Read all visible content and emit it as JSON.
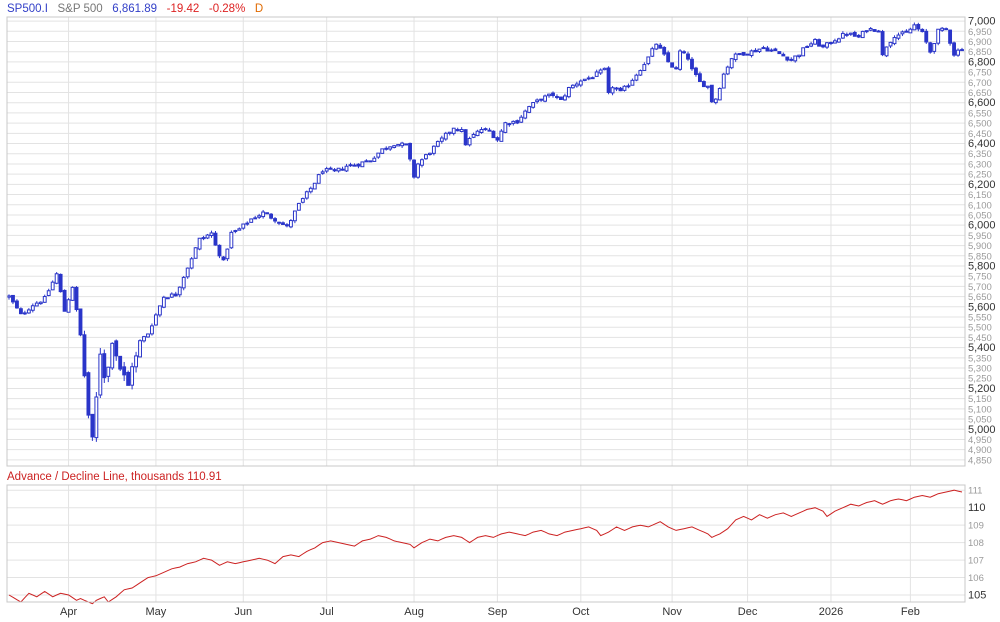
{
  "header": {
    "symbol": "SP500.I",
    "name": "S&P 500",
    "last": "6,861.89",
    "change": "-19.42",
    "change_pct": "-0.28%",
    "period": "D"
  },
  "indicator": {
    "label": "Advance / Decline Line, thousands",
    "value": "110.91"
  },
  "colors": {
    "candle": "#2a35c9",
    "ad_line": "#cc2222",
    "grid": "#e3e3e3",
    "axis_text": "#9a9a9a",
    "header_blue": "#3340c8",
    "header_gray": "#777777",
    "header_red": "#dd2222",
    "header_orange": "#e06a00"
  },
  "chart_data": [
    {
      "type": "candlestick",
      "title": "",
      "y_axis_side": "right",
      "ylim": [
        4820,
        7020
      ],
      "y_ticks": [
        4850,
        4900,
        4950,
        5000,
        5050,
        5100,
        5150,
        5200,
        5250,
        5300,
        5350,
        5400,
        5450,
        5500,
        5550,
        5600,
        5650,
        5700,
        5750,
        5800,
        5850,
        5900,
        5950,
        6000,
        6050,
        6100,
        6150,
        6200,
        6250,
        6300,
        6350,
        6400,
        6450,
        6500,
        6550,
        6600,
        6650,
        6700,
        6750,
        6800,
        6850,
        6900,
        6950,
        7000
      ],
      "y_tick_labels": [
        "4,850",
        "4,900",
        "4,950",
        "5,000",
        "5,050",
        "5,100",
        "5,150",
        "5,200",
        "5,250",
        "5,300",
        "5,350",
        "5,400",
        "5,450",
        "5,500",
        "5,550",
        "5,600",
        "5,650",
        "5,700",
        "5,750",
        "5,800",
        "5,850",
        "5,900",
        "5,950",
        "6,000",
        "6,050",
        "6,100",
        "6,150",
        "6,200",
        "6,250",
        "6,300",
        "6,350",
        "6,400",
        "6,450",
        "6,500",
        "6,550",
        "6,600",
        "6,650",
        "6,700",
        "6,750",
        "6,800",
        "6,850",
        "6,900",
        "6,950",
        "7,000"
      ],
      "y_major_ticks": [
        5000,
        5200,
        5400,
        5600,
        5800,
        6000,
        6200,
        6400,
        6600,
        6800,
        7000
      ],
      "x_labels": [
        {
          "label": "Apr",
          "day": 15
        },
        {
          "label": "May",
          "day": 37
        },
        {
          "label": "Jun",
          "day": 59
        },
        {
          "label": "Jul",
          "day": 80
        },
        {
          "label": "Aug",
          "day": 102
        },
        {
          "label": "Sep",
          "day": 123
        },
        {
          "label": "Oct",
          "day": 144
        },
        {
          "label": "Nov",
          "day": 167
        },
        {
          "label": "Dec",
          "day": 186
        },
        {
          "label": "2026",
          "day": 207
        },
        {
          "label": "Feb",
          "day": 227
        }
      ],
      "total_days": 240,
      "anchors": [
        [
          0,
          5650
        ],
        [
          3,
          5560
        ],
        [
          6,
          5610
        ],
        [
          9,
          5640
        ],
        [
          12,
          5760
        ],
        [
          14,
          5580
        ],
        [
          16,
          5700
        ],
        [
          18,
          5460
        ],
        [
          20,
          5070
        ],
        [
          21,
          4940
        ],
        [
          22,
          5150
        ],
        [
          23,
          5380
        ],
        [
          24,
          5270
        ],
        [
          25,
          5300
        ],
        [
          26,
          5430
        ],
        [
          27,
          5370
        ],
        [
          28,
          5300
        ],
        [
          30,
          5210
        ],
        [
          31,
          5320
        ],
        [
          32,
          5350
        ],
        [
          33,
          5430
        ],
        [
          35,
          5470
        ],
        [
          37,
          5560
        ],
        [
          39,
          5650
        ],
        [
          42,
          5660
        ],
        [
          44,
          5750
        ],
        [
          46,
          5840
        ],
        [
          48,
          5930
        ],
        [
          51,
          5960
        ],
        [
          52,
          5900
        ],
        [
          54,
          5820
        ],
        [
          56,
          5960
        ],
        [
          58,
          5980
        ],
        [
          61,
          6030
        ],
        [
          64,
          6060
        ],
        [
          67,
          6030
        ],
        [
          70,
          5990
        ],
        [
          73,
          6100
        ],
        [
          76,
          6180
        ],
        [
          79,
          6270
        ],
        [
          82,
          6260
        ],
        [
          85,
          6290
        ],
        [
          88,
          6300
        ],
        [
          91,
          6320
        ],
        [
          94,
          6370
        ],
        [
          97,
          6400
        ],
        [
          100,
          6390
        ],
        [
          102,
          6240
        ],
        [
          103,
          6300
        ],
        [
          106,
          6360
        ],
        [
          109,
          6420
        ],
        [
          112,
          6480
        ],
        [
          114,
          6460
        ],
        [
          115,
          6400
        ],
        [
          117,
          6440
        ],
        [
          119,
          6470
        ],
        [
          121,
          6460
        ],
        [
          123,
          6420
        ],
        [
          125,
          6500
        ],
        [
          128,
          6510
        ],
        [
          131,
          6580
        ],
        [
          134,
          6620
        ],
        [
          137,
          6640
        ],
        [
          139,
          6610
        ],
        [
          141,
          6670
        ],
        [
          144,
          6710
        ],
        [
          146,
          6720
        ],
        [
          148,
          6740
        ],
        [
          150,
          6760
        ],
        [
          151,
          6640
        ],
        [
          152,
          6680
        ],
        [
          154,
          6650
        ],
        [
          156,
          6690
        ],
        [
          158,
          6740
        ],
        [
          161,
          6820
        ],
        [
          163,
          6890
        ],
        [
          164,
          6860
        ],
        [
          165,
          6830
        ],
        [
          166,
          6800
        ],
        [
          168,
          6760
        ],
        [
          169,
          6850
        ],
        [
          171,
          6820
        ],
        [
          172,
          6760
        ],
        [
          174,
          6700
        ],
        [
          176,
          6680
        ],
        [
          177,
          6610
        ],
        [
          178,
          6620
        ],
        [
          180,
          6740
        ],
        [
          182,
          6820
        ],
        [
          184,
          6840
        ],
        [
          187,
          6850
        ],
        [
          190,
          6870
        ],
        [
          193,
          6850
        ],
        [
          195,
          6830
        ],
        [
          197,
          6810
        ],
        [
          199,
          6840
        ],
        [
          201,
          6880
        ],
        [
          203,
          6900
        ],
        [
          205,
          6870
        ],
        [
          208,
          6910
        ],
        [
          211,
          6940
        ],
        [
          214,
          6920
        ],
        [
          216,
          6960
        ],
        [
          219,
          6960
        ],
        [
          220,
          6830
        ],
        [
          221,
          6880
        ],
        [
          223,
          6930
        ],
        [
          226,
          6940
        ],
        [
          228,
          6980
        ],
        [
          230,
          6940
        ],
        [
          232,
          6850
        ],
        [
          234,
          6950
        ],
        [
          236,
          6960
        ],
        [
          238,
          6840
        ],
        [
          240,
          6870
        ]
      ]
    },
    {
      "type": "line",
      "title": "",
      "series_name": "",
      "ylim": [
        104.6,
        111.3
      ],
      "y_ticks": [
        105,
        106,
        107,
        108,
        109,
        110,
        111
      ],
      "y_tick_labels": [
        "105",
        "106",
        "107",
        "108",
        "109",
        "110",
        "111"
      ],
      "y_major_ticks": [
        105,
        110
      ],
      "last_value": 110.91,
      "anchors": [
        [
          0,
          105.0
        ],
        [
          3,
          104.6
        ],
        [
          5,
          105.1
        ],
        [
          7,
          104.9
        ],
        [
          9,
          105.2
        ],
        [
          11,
          104.9
        ],
        [
          13,
          105.1
        ],
        [
          15,
          105.0
        ],
        [
          17,
          104.7
        ],
        [
          18,
          104.8
        ],
        [
          20,
          104.6
        ],
        [
          21,
          104.5
        ],
        [
          22,
          104.7
        ],
        [
          24,
          104.9
        ],
        [
          25,
          104.6
        ],
        [
          27,
          104.9
        ],
        [
          29,
          105.3
        ],
        [
          31,
          105.4
        ],
        [
          33,
          105.7
        ],
        [
          35,
          106.0
        ],
        [
          37,
          106.1
        ],
        [
          39,
          106.3
        ],
        [
          41,
          106.5
        ],
        [
          43,
          106.6
        ],
        [
          45,
          106.8
        ],
        [
          47,
          106.9
        ],
        [
          49,
          107.1
        ],
        [
          51,
          107.0
        ],
        [
          53,
          106.7
        ],
        [
          55,
          106.9
        ],
        [
          57,
          106.8
        ],
        [
          59,
          106.9
        ],
        [
          61,
          107.0
        ],
        [
          63,
          107.1
        ],
        [
          65,
          107.0
        ],
        [
          67,
          106.8
        ],
        [
          69,
          107.2
        ],
        [
          71,
          107.3
        ],
        [
          73,
          107.2
        ],
        [
          75,
          107.5
        ],
        [
          77,
          107.7
        ],
        [
          79,
          108.0
        ],
        [
          81,
          108.1
        ],
        [
          83,
          108.0
        ],
        [
          85,
          107.9
        ],
        [
          87,
          107.8
        ],
        [
          89,
          108.1
        ],
        [
          91,
          108.2
        ],
        [
          93,
          108.4
        ],
        [
          95,
          108.3
        ],
        [
          97,
          108.1
        ],
        [
          99,
          108.0
        ],
        [
          101,
          107.9
        ],
        [
          102,
          107.7
        ],
        [
          104,
          108.0
        ],
        [
          106,
          108.2
        ],
        [
          108,
          108.1
        ],
        [
          110,
          108.3
        ],
        [
          112,
          108.4
        ],
        [
          114,
          108.3
        ],
        [
          116,
          108.0
        ],
        [
          118,
          108.3
        ],
        [
          120,
          108.4
        ],
        [
          122,
          108.3
        ],
        [
          124,
          108.5
        ],
        [
          126,
          108.6
        ],
        [
          128,
          108.5
        ],
        [
          130,
          108.4
        ],
        [
          132,
          108.6
        ],
        [
          134,
          108.7
        ],
        [
          136,
          108.5
        ],
        [
          138,
          108.4
        ],
        [
          140,
          108.6
        ],
        [
          142,
          108.7
        ],
        [
          144,
          108.8
        ],
        [
          146,
          108.9
        ],
        [
          148,
          108.7
        ],
        [
          149,
          108.4
        ],
        [
          151,
          108.6
        ],
        [
          153,
          108.9
        ],
        [
          155,
          108.7
        ],
        [
          157,
          108.9
        ],
        [
          159,
          109.0
        ],
        [
          161,
          108.9
        ],
        [
          163,
          109.1
        ],
        [
          164,
          109.2
        ],
        [
          166,
          108.9
        ],
        [
          168,
          108.7
        ],
        [
          170,
          108.8
        ],
        [
          172,
          108.9
        ],
        [
          174,
          108.7
        ],
        [
          176,
          108.5
        ],
        [
          177,
          108.3
        ],
        [
          179,
          108.5
        ],
        [
          181,
          108.8
        ],
        [
          183,
          109.3
        ],
        [
          185,
          109.5
        ],
        [
          187,
          109.3
        ],
        [
          189,
          109.6
        ],
        [
          191,
          109.4
        ],
        [
          193,
          109.6
        ],
        [
          195,
          109.7
        ],
        [
          197,
          109.5
        ],
        [
          199,
          109.7
        ],
        [
          201,
          109.9
        ],
        [
          203,
          110.0
        ],
        [
          205,
          109.8
        ],
        [
          206,
          109.5
        ],
        [
          208,
          109.8
        ],
        [
          210,
          110.0
        ],
        [
          212,
          110.2
        ],
        [
          214,
          110.1
        ],
        [
          216,
          110.3
        ],
        [
          218,
          110.4
        ],
        [
          220,
          110.2
        ],
        [
          222,
          110.4
        ],
        [
          224,
          110.5
        ],
        [
          226,
          110.4
        ],
        [
          228,
          110.6
        ],
        [
          230,
          110.7
        ],
        [
          232,
          110.6
        ],
        [
          234,
          110.8
        ],
        [
          236,
          110.9
        ],
        [
          238,
          111.0
        ],
        [
          240,
          110.9
        ]
      ]
    }
  ]
}
